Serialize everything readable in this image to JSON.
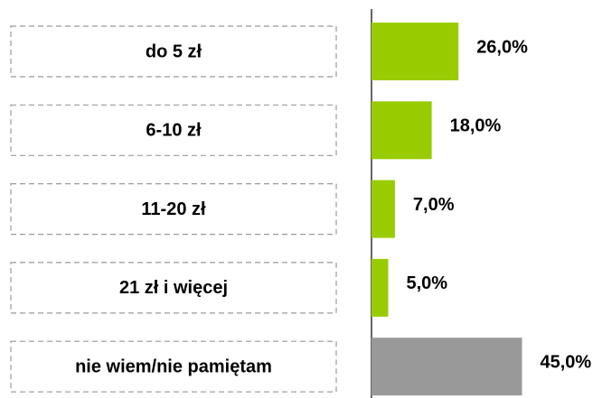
{
  "chart_data": {
    "type": "hbar",
    "categories": [
      "do 5 zł",
      "6-10 zł",
      "11-20 zł",
      "21 zł i więcej",
      "nie wiem/nie pamiętam"
    ],
    "values": [
      26,
      18,
      7,
      5,
      45
    ],
    "value_labels": [
      "26,0%",
      "18,0%",
      "7,0%",
      "5,0%",
      "45,0%"
    ],
    "colors": [
      "#99cc00",
      "#99cc00",
      "#99cc00",
      "#99cc00",
      "#999999"
    ],
    "xlim": [
      0,
      50
    ]
  }
}
